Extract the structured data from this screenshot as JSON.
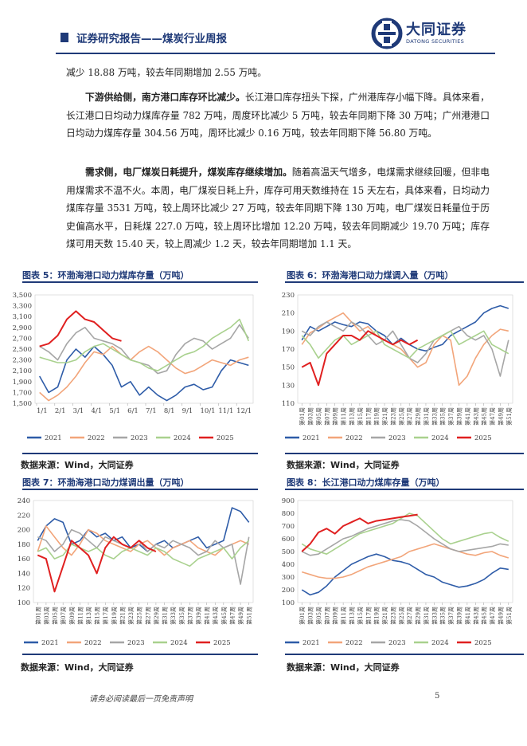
{
  "header": {
    "report_title": "证券研究报告——煤炭行业周报",
    "logo_name": "大同证券",
    "logo_sub": "DATONG SECURITIES"
  },
  "body": {
    "p0": "减少 18.88 万吨，较去年同期增加 2.55 万吨。",
    "p1_bold": "下游供给侧，南方港口库存环比减少。",
    "p1_text": "长江港口库存扭头下探，广州港库存小幅下降。具体来看，长江港口日均动力煤库存量 782 万吨，周度环比减少 5 万吨，较去年同期下降 30 万吨；广州港港口日均动力煤库存量 304.56 万吨，周环比减少 0.16 万吨，较去年同期下降 56.80 万吨。",
    "p2_bold": "需求侧，电厂煤炭日耗提升，煤炭库存继续增加。",
    "p2_text": "随着高温天气增多，电煤需求继续回暖，但非电用煤需求不温不火。本周，电厂煤炭日耗上升，库存可用天数维持在 15 天左右，具体来看，日均动力煤库存量 3531 万吨，较上周环比减少 27 万吨，较去年同期下降 130 万吨，电厂煤炭日耗量位于历史偏高水平，日耗煤 227.0 万吨，较上周环比增加 12.20 万吨，较去年同期减少 19.70 万吨；库存煤可用天数 15.40 天，较上周减少 1.2 天，较去年同期增加 1.1 天。"
  },
  "figures": {
    "f5_title": "图表 5：环渤海港口动力煤库存量（万吨）",
    "f6_title": "图表 6：环渤海港口动力煤调入量（万吨）",
    "f7_title": "图表 7：环渤海港口动力煤调出量（万吨）",
    "f8_title": "图表 8：长江港口动力煤库存量（万吨）",
    "source": "数据来源：Wind，大同证券"
  },
  "footer": {
    "disclaimer": "请务必阅读最后一页免责声明",
    "page_number": "5"
  },
  "colors": {
    "brand": "#1f3a78",
    "s2021": "#2e5ca8",
    "s2022": "#f2a57a",
    "s2023": "#a6a6a6",
    "s2024": "#a9d18e",
    "s2025": "#e02020"
  },
  "chart_data": [
    {
      "id": "f5",
      "type": "line",
      "title": "环渤海港口动力煤库存量（万吨）",
      "xlabel": "",
      "ylabel": "",
      "ylim": [
        1500,
        3500
      ],
      "yticks": [
        "1,500",
        "1,700",
        "1,900",
        "2,100",
        "2,300",
        "2,500",
        "2,700",
        "2,900",
        "3,100",
        "3,300",
        "3,500"
      ],
      "xticks": [
        "1/1",
        "2/1",
        "3/1",
        "4/1",
        "5/1",
        "6/1",
        "7/1",
        "8/1",
        "9/1",
        "10/1",
        "11/1",
        "12/1"
      ],
      "n": 24,
      "legend": "bottom",
      "series": [
        {
          "name": "2021",
          "color": "#2e5ca8",
          "values": [
            2000,
            1700,
            1800,
            2300,
            2500,
            2350,
            2550,
            2400,
            2200,
            1800,
            1900,
            1650,
            1800,
            1650,
            1550,
            1650,
            1800,
            1850,
            1750,
            1800,
            2100,
            2300,
            2250,
            2200
          ]
        },
        {
          "name": "2022",
          "color": "#f2a57a",
          "values": [
            1700,
            1550,
            1650,
            1800,
            2000,
            2250,
            2450,
            2400,
            2550,
            2400,
            2300,
            2450,
            2550,
            2450,
            2300,
            2150,
            2050,
            2100,
            2200,
            2300,
            2250,
            2200,
            2300,
            2350
          ]
        },
        {
          "name": "2023",
          "color": "#a6a6a6",
          "values": [
            2550,
            2450,
            2300,
            2600,
            2800,
            2900,
            2700,
            2650,
            2600,
            2500,
            2300,
            2250,
            2200,
            2050,
            2100,
            2400,
            2600,
            2700,
            2650,
            2500,
            2600,
            2700,
            2950,
            2700
          ]
        },
        {
          "name": "2024",
          "color": "#a9d18e",
          "values": [
            2350,
            2300,
            2250,
            2250,
            2300,
            2450,
            2550,
            2600,
            2500,
            2400,
            2300,
            2250,
            2150,
            2100,
            2200,
            2300,
            2400,
            2450,
            2550,
            2700,
            2800,
            2900,
            3050,
            2650
          ]
        },
        {
          "name": "2025",
          "color": "#e02020",
          "values": [
            2550,
            2600,
            2750,
            3050,
            3200,
            3050,
            3000,
            2850,
            2700,
            2650,
            null,
            null,
            null,
            null,
            null,
            null,
            null,
            null,
            null,
            null,
            null,
            null,
            null,
            null
          ]
        }
      ]
    },
    {
      "id": "f6",
      "type": "line",
      "title": "环渤海港口动力煤调入量（万吨）",
      "xlabel": "",
      "ylabel": "",
      "ylim": [
        110,
        230
      ],
      "yticks": [
        "110",
        "130",
        "150",
        "170",
        "190",
        "210",
        "230"
      ],
      "xticks": [
        "第01周",
        "第03周",
        "第05周",
        "第07周",
        "第09周",
        "第11周",
        "第13周",
        "第15周",
        "第17周",
        "第19周",
        "第21周",
        "第23周",
        "第25周",
        "第27周",
        "第29周",
        "第31周",
        "第33周",
        "第35周",
        "第37周",
        "第39周",
        "第41周",
        "第43周",
        "第45周",
        "第47周",
        "第49周",
        "第51周"
      ],
      "n": 26,
      "legend": "bottom",
      "series": [
        {
          "name": "2021",
          "color": "#2e5ca8",
          "values": [
            180,
            195,
            190,
            195,
            200,
            197,
            195,
            200,
            198,
            190,
            185,
            175,
            182,
            175,
            170,
            168,
            172,
            175,
            185,
            190,
            195,
            200,
            210,
            215,
            218,
            215
          ]
        },
        {
          "name": "2022",
          "color": "#f2a57a",
          "values": [
            175,
            188,
            193,
            200,
            205,
            210,
            200,
            190,
            195,
            185,
            180,
            175,
            170,
            160,
            150,
            155,
            175,
            185,
            180,
            130,
            140,
            160,
            175,
            185,
            192,
            190
          ]
        },
        {
          "name": "2023",
          "color": "#a6a6a6",
          "values": [
            190,
            185,
            195,
            200,
            195,
            190,
            200,
            195,
            185,
            175,
            180,
            190,
            175,
            160,
            155,
            165,
            180,
            185,
            190,
            195,
            185,
            180,
            185,
            170,
            140,
            180
          ]
        },
        {
          "name": "2024",
          "color": "#a9d18e",
          "values": [
            185,
            175,
            160,
            170,
            180,
            185,
            175,
            180,
            185,
            190,
            175,
            170,
            165,
            160,
            170,
            175,
            180,
            185,
            190,
            175,
            180,
            185,
            190,
            175,
            170,
            165
          ]
        },
        {
          "name": "2025",
          "color": "#e02020",
          "values": [
            150,
            155,
            130,
            165,
            175,
            185,
            185,
            180,
            190,
            185,
            180,
            175,
            180,
            175,
            180,
            null,
            null,
            null,
            null,
            null,
            null,
            null,
            null,
            null,
            null,
            null
          ]
        }
      ]
    },
    {
      "id": "f7",
      "type": "line",
      "title": "环渤海港口动力煤调出量（万吨）",
      "xlabel": "",
      "ylabel": "",
      "ylim": [
        100,
        240
      ],
      "yticks": [
        "100",
        "120",
        "140",
        "160",
        "180",
        "200",
        "220",
        "240"
      ],
      "xticks": [
        "第01周",
        "第03周",
        "第05周",
        "第07周",
        "第09周",
        "第11周",
        "第13周",
        "第15周",
        "第17周",
        "第19周",
        "第21周",
        "第23周",
        "第25周",
        "第27周",
        "第29周",
        "第31周",
        "第33周",
        "第35周",
        "第37周",
        "第39周",
        "第41周",
        "第43周",
        "第45周",
        "第47周",
        "第49周",
        "第51周"
      ],
      "n": 26,
      "legend": "bottom",
      "series": [
        {
          "name": "2021",
          "color": "#2e5ca8",
          "values": [
            185,
            205,
            215,
            210,
            180,
            185,
            200,
            190,
            195,
            185,
            190,
            175,
            180,
            170,
            180,
            185,
            175,
            180,
            185,
            190,
            175,
            180,
            185,
            230,
            225,
            210
          ]
        },
        {
          "name": "2022",
          "color": "#f2a57a",
          "values": [
            170,
            205,
            190,
            175,
            165,
            180,
            200,
            195,
            185,
            180,
            175,
            170,
            180,
            185,
            175,
            165,
            175,
            180,
            185,
            175,
            170,
            165,
            175,
            180,
            185,
            180
          ]
        },
        {
          "name": "2023",
          "color": "#a6a6a6",
          "values": [
            190,
            185,
            170,
            180,
            200,
            195,
            185,
            175,
            190,
            185,
            180,
            175,
            185,
            170,
            180,
            175,
            185,
            180,
            175,
            165,
            170,
            185,
            175,
            180,
            125,
            190
          ]
        },
        {
          "name": "2024",
          "color": "#a9d18e",
          "values": [
            170,
            175,
            160,
            165,
            180,
            175,
            170,
            175,
            165,
            160,
            170,
            175,
            170,
            165,
            175,
            170,
            160,
            155,
            150,
            160,
            165,
            170,
            175,
            160,
            175,
            185
          ]
        },
        {
          "name": "2025",
          "color": "#e02020",
          "values": [
            165,
            160,
            115,
            150,
            185,
            175,
            165,
            140,
            175,
            190,
            180,
            175,
            185,
            175,
            170,
            null,
            null,
            null,
            null,
            null,
            null,
            null,
            null,
            null,
            null,
            null
          ]
        }
      ]
    },
    {
      "id": "f8",
      "type": "line",
      "title": "长江港口动力煤库存量（万吨）",
      "xlabel": "",
      "ylabel": "",
      "ylim": [
        100,
        900
      ],
      "yticks": [
        "100",
        "200",
        "300",
        "400",
        "500",
        "600",
        "700",
        "800",
        "900"
      ],
      "xticks": [
        "第01周",
        "第03周",
        "第05周",
        "第07周",
        "第09周",
        "第11周",
        "第13周",
        "第15周",
        "第17周",
        "第19周",
        "第21周",
        "第23周",
        "第25周",
        "第27周",
        "第29周",
        "第31周",
        "第33周",
        "第35周",
        "第37周",
        "第39周",
        "第41周",
        "第43周",
        "第45周",
        "第47周",
        "第49周",
        "第51周"
      ],
      "n": 26,
      "legend": "bottom",
      "series": [
        {
          "name": "2021",
          "color": "#2e5ca8",
          "values": [
            200,
            160,
            180,
            230,
            300,
            350,
            400,
            430,
            460,
            480,
            460,
            430,
            420,
            400,
            360,
            320,
            300,
            260,
            240,
            220,
            230,
            250,
            280,
            330,
            370,
            360
          ]
        },
        {
          "name": "2022",
          "color": "#f2a57a",
          "values": [
            340,
            320,
            300,
            290,
            290,
            300,
            320,
            350,
            380,
            400,
            420,
            440,
            460,
            500,
            520,
            540,
            560,
            540,
            520,
            500,
            480,
            470,
            490,
            500,
            470,
            450
          ]
        },
        {
          "name": "2023",
          "color": "#a6a6a6",
          "values": [
            500,
            470,
            480,
            520,
            560,
            600,
            620,
            650,
            680,
            700,
            720,
            740,
            750,
            740,
            700,
            650,
            600,
            560,
            520,
            500,
            510,
            520,
            530,
            540,
            560,
            550
          ]
        },
        {
          "name": "2024",
          "color": "#a9d18e",
          "values": [
            560,
            520,
            500,
            480,
            520,
            560,
            600,
            640,
            660,
            680,
            700,
            720,
            760,
            800,
            780,
            720,
            660,
            600,
            560,
            580,
            600,
            620,
            640,
            650,
            610,
            580
          ]
        },
        {
          "name": "2025",
          "color": "#e02020",
          "values": [
            500,
            560,
            650,
            680,
            640,
            700,
            730,
            760,
            720,
            740,
            750,
            760,
            770,
            780,
            790,
            null,
            null,
            null,
            null,
            null,
            null,
            null,
            null,
            null,
            null,
            null
          ]
        }
      ]
    }
  ]
}
